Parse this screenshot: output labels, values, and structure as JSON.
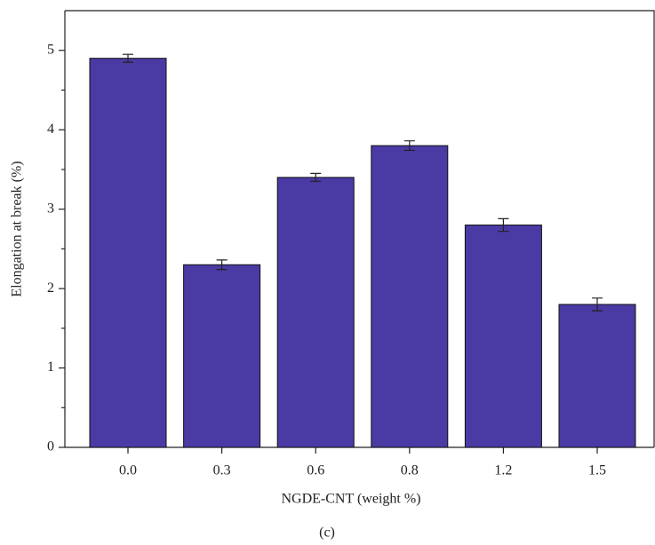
{
  "chart_data": {
    "type": "bar",
    "xlabel": "NGDE-CNT (weight %)",
    "ylabel": "Elongation at break (%)",
    "caption": "(c)",
    "categories": [
      "0.0",
      "0.3",
      "0.6",
      "0.8",
      "1.2",
      "1.5"
    ],
    "values": [
      4.9,
      2.3,
      3.4,
      3.8,
      2.8,
      1.8
    ],
    "errors": [
      0.05,
      0.06,
      0.05,
      0.06,
      0.08,
      0.08
    ],
    "color": "#4a3aa3",
    "ylim": [
      0,
      5.5
    ],
    "yticks": [
      0,
      1,
      2,
      3,
      4,
      5
    ],
    "yminorticks": [
      0.5,
      1.5,
      2.5,
      3.5,
      4.5
    ]
  }
}
